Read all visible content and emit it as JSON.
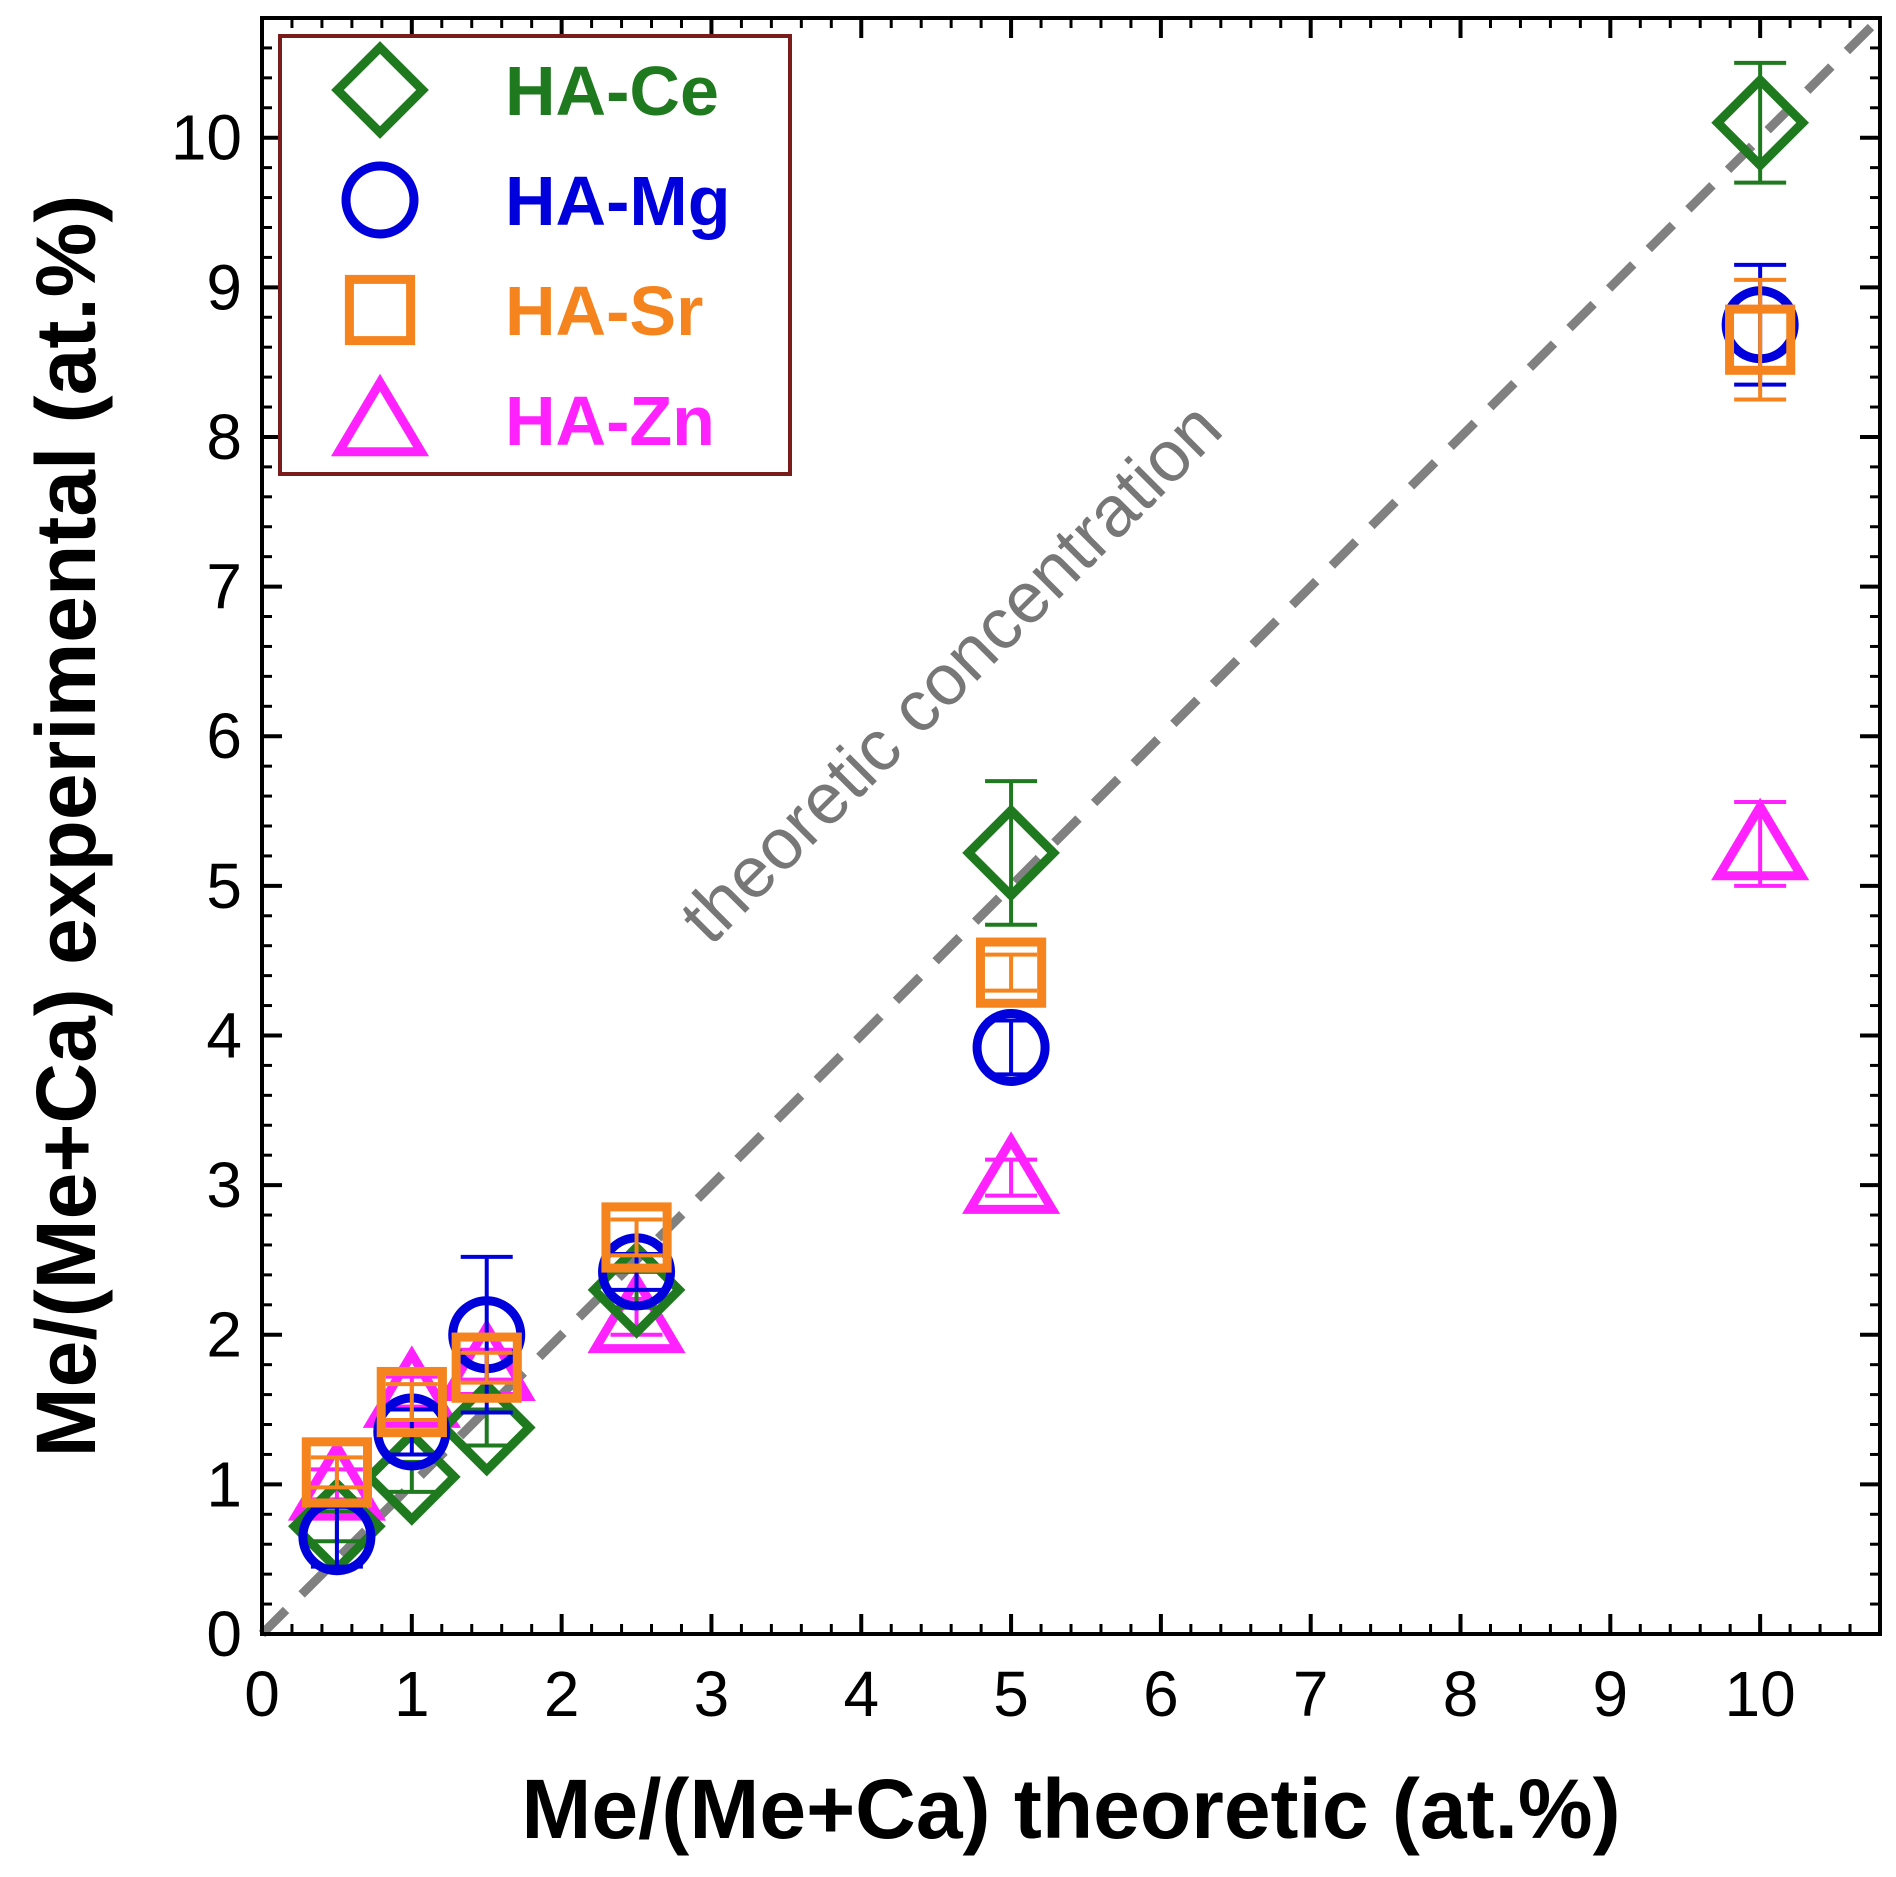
{
  "chart_data": {
    "type": "scatter",
    "xlabel": "Me/(Me+Ca) theoretic (at.%)",
    "ylabel": "Me/(Me+Ca) experimental (at.%)",
    "xlim": [
      0,
      10.8
    ],
    "ylim": [
      0,
      10.8
    ],
    "x_ticks": [
      "0",
      "1",
      "2",
      "3",
      "4",
      "5",
      "6",
      "7",
      "8",
      "9",
      "10"
    ],
    "y_ticks": [
      "0",
      "1",
      "2",
      "3",
      "4",
      "5",
      "6",
      "7",
      "8",
      "9",
      "10"
    ],
    "grid": false,
    "legend_position": "top-left",
    "reference_line": {
      "label": "theoretic concentration",
      "style": "dashed",
      "color": "#808080",
      "from": [
        0,
        0
      ],
      "to": [
        10.8,
        10.8
      ]
    },
    "series": [
      {
        "name": "HA-Ce",
        "marker": "diamond",
        "color": "#1f7a1f",
        "x": [
          0.5,
          1.0,
          1.5,
          2.5,
          5.0,
          10.0
        ],
        "y": [
          0.72,
          1.05,
          1.38,
          2.3,
          5.22,
          10.1
        ],
        "err": [
          0.1,
          0.1,
          0.12,
          0.12,
          0.48,
          0.4
        ]
      },
      {
        "name": "HA-Mg",
        "marker": "circle",
        "color": "#0000dd",
        "x": [
          0.5,
          1.0,
          1.5,
          2.5,
          5.0,
          10.0
        ],
        "y": [
          0.65,
          1.35,
          2.0,
          2.42,
          3.92,
          8.75
        ],
        "err": [
          0.2,
          0.15,
          0.52,
          0.12,
          0.18,
          0.4
        ]
      },
      {
        "name": "HA-Sr",
        "marker": "square",
        "color": "#f5841f",
        "x": [
          0.5,
          1.0,
          1.5,
          2.5,
          5.0,
          10.0
        ],
        "y": [
          1.08,
          1.55,
          1.78,
          2.65,
          4.42,
          8.65
        ],
        "err": [
          0.1,
          0.12,
          0.1,
          0.12,
          0.12,
          0.4
        ]
      },
      {
        "name": "HA-Zn",
        "marker": "triangle",
        "color": "#ff22ff",
        "x": [
          0.5,
          1.0,
          1.5,
          2.5,
          5.0,
          10.0
        ],
        "y": [
          1.0,
          1.62,
          1.8,
          2.12,
          3.05,
          5.28
        ],
        "err": [
          0.1,
          0.1,
          0.1,
          0.12,
          0.12,
          0.28
        ]
      }
    ]
  }
}
